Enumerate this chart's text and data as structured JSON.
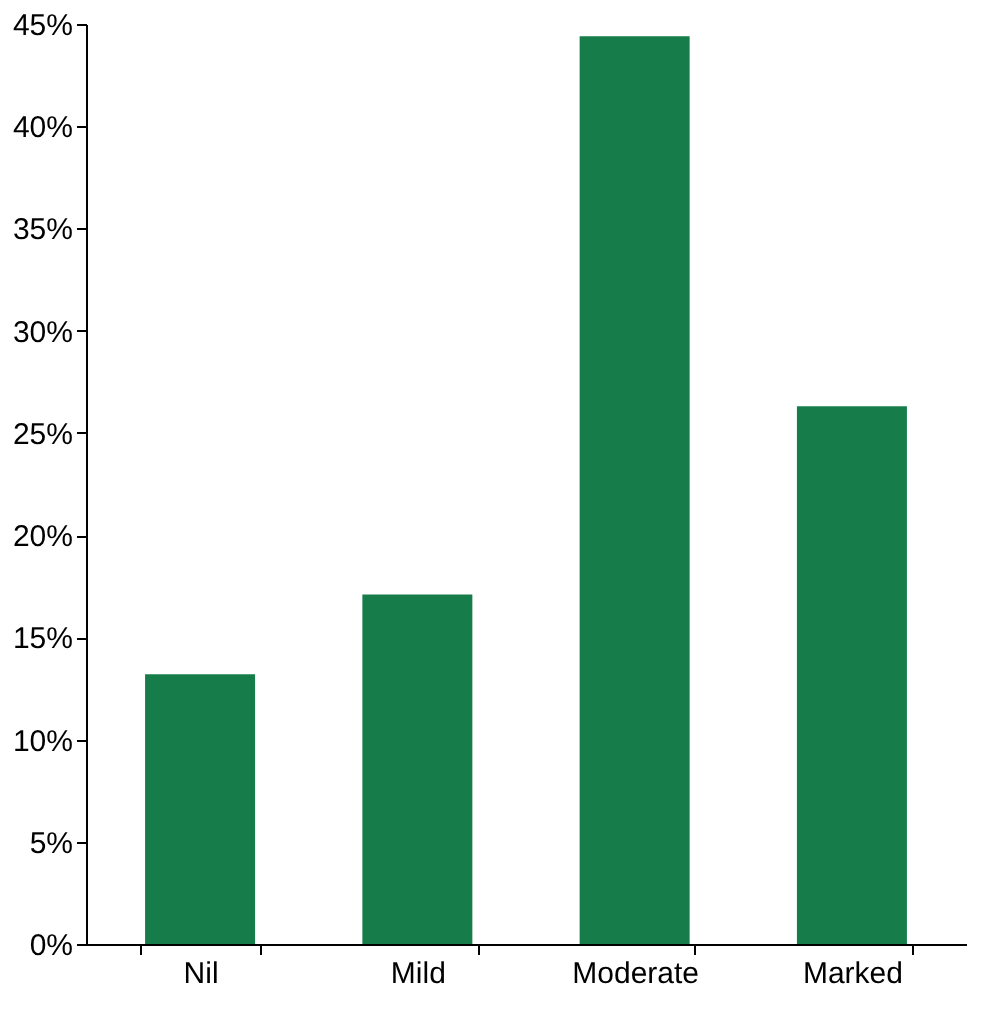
{
  "chart_data": {
    "type": "bar",
    "categories": [
      "Nil",
      "Mild",
      "Moderate",
      "Marked"
    ],
    "values": [
      13.2,
      17.1,
      44.4,
      26.3
    ],
    "color": "#167d4a",
    "ylim": [
      0,
      45
    ],
    "yticks": [
      {
        "value": 0,
        "label": "0%"
      },
      {
        "value": 5,
        "label": "5%"
      },
      {
        "value": 10,
        "label": "10%"
      },
      {
        "value": 15,
        "label": "15%"
      },
      {
        "value": 20,
        "label": "20%"
      },
      {
        "value": 25,
        "label": "25%"
      },
      {
        "value": 30,
        "label": "30%"
      },
      {
        "value": 35,
        "label": "35%"
      },
      {
        "value": 40,
        "label": "40%"
      },
      {
        "value": 45,
        "label": "45%"
      }
    ],
    "grid": false
  }
}
